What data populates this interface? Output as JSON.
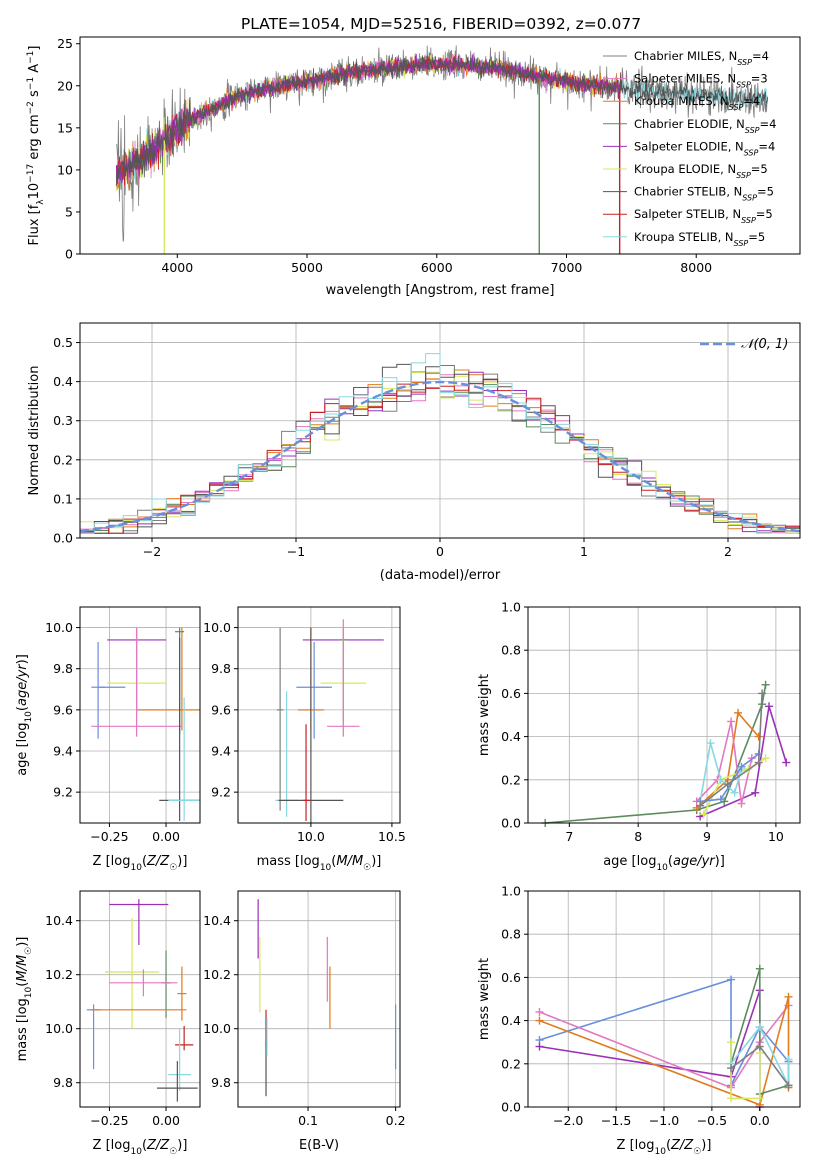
{
  "figure": {
    "title": "PLATE=1054, MJD=52516, FIBERID=0392, z=0.077"
  },
  "colors": {
    "Chabrier MILES": "#7f7f7f",
    "Salpeter MILES": "#e377c2",
    "Kroupa MILES": "#e07b20",
    "Chabrier ELODIE": "#5b8a5b",
    "Salpeter ELODIE": "#9b30b8",
    "Kroupa ELODIE": "#d8e860",
    "Chabrier STELIB": "#555555",
    "Salpeter STELIB": "#c82020",
    "Kroupa STELIB": "#88d8e0",
    "blue": "#6a8fdc"
  },
  "chart_data": [
    {
      "id": "spectrum",
      "type": "line",
      "xlabel": "wavelength [Angstrom, rest frame]",
      "ylabel": "Flux [f_λ 10^-17 erg cm^-2 s^-1 A^-1]",
      "xlim": [
        3250,
        8800
      ],
      "ylim": [
        0,
        25.8
      ],
      "xticks": [
        4000,
        5000,
        6000,
        7000,
        8000
      ],
      "yticks": [
        0,
        5,
        10,
        15,
        20,
        25
      ],
      "grid": false,
      "legend_position": "top-right",
      "series": [
        {
          "name": "Chabrier MILES",
          "nssp": "4",
          "color_key": "Chabrier MILES"
        },
        {
          "name": "Salpeter MILES",
          "nssp": "3",
          "color_key": "Salpeter MILES"
        },
        {
          "name": "Kroupa MILES",
          "nssp": "4",
          "color_key": "Kroupa MILES"
        },
        {
          "name": "Chabrier ELODIE",
          "nssp": "4",
          "color_key": "Chabrier ELODIE"
        },
        {
          "name": "Salpeter ELODIE",
          "nssp": "4",
          "color_key": "Salpeter ELODIE"
        },
        {
          "name": "Kroupa ELODIE",
          "nssp": "5",
          "color_key": "Kroupa ELODIE"
        },
        {
          "name": "Chabrier STELIB",
          "nssp": "5",
          "color_key": "Chabrier STELIB"
        },
        {
          "name": "Salpeter STELIB",
          "nssp": "5",
          "color_key": "Salpeter STELIB"
        },
        {
          "name": "Kroupa STELIB",
          "nssp": "5",
          "color_key": "Kroupa STELIB"
        }
      ],
      "continuum_x": [
        3530,
        3700,
        3900,
        4100,
        4300,
        4500,
        4800,
        5000,
        5300,
        5600,
        5900,
        6200,
        6500,
        6800,
        7000,
        7200,
        7400,
        7700,
        8000,
        8300,
        8550,
        8800
      ],
      "continuum_y": [
        9.5,
        11.0,
        13.5,
        16.0,
        17.5,
        19.0,
        20.0,
        20.5,
        21.5,
        22.0,
        22.5,
        22.5,
        22.0,
        21.0,
        20.5,
        20.0,
        19.8,
        19.2,
        19.0,
        18.5,
        18.5,
        19.0
      ],
      "dips": [
        {
          "x": 3900,
          "y": 0
        },
        {
          "x": 6790,
          "y": 0
        },
        {
          "x": 7410,
          "y": 0
        }
      ]
    },
    {
      "id": "residuals",
      "type": "step",
      "xlabel": "(data-model)/error",
      "ylabel": "Normed distribution",
      "xlim": [
        -2.5,
        2.5
      ],
      "ylim": [
        0,
        0.55
      ],
      "xticks": [
        -2,
        -1,
        0,
        1,
        2
      ],
      "xtick_labels": [
        "−2",
        "−1",
        "0",
        "1",
        "2"
      ],
      "yticks": [
        0.0,
        0.1,
        0.2,
        0.3,
        0.4,
        0.5
      ],
      "grid": true,
      "legend_position": "top-right",
      "reference_curve": {
        "name": "𝒩(0, 1)",
        "color_key": "blue",
        "mean": 0,
        "sigma": 1
      },
      "bin_width": 0.1,
      "bin_start": -2.5,
      "histogram_series": [
        "Chabrier MILES",
        "Salpeter MILES",
        "Kroupa MILES",
        "Chabrier ELODIE",
        "Salpeter ELODIE",
        "Kroupa ELODIE",
        "Chabrier STELIB",
        "Salpeter STELIB",
        "Kroupa STELIB"
      ]
    },
    {
      "id": "age-vs-Z",
      "type": "errorbar",
      "xlabel": "Z [log10(Z/Z☉)]",
      "ylabel": "age [log10(age/yr)]",
      "xlim": [
        -0.38,
        0.15
      ],
      "ylim": [
        9.05,
        10.1
      ],
      "xticks": [
        -0.25,
        0.0
      ],
      "xtick_labels": [
        "−0.25",
        "0.00"
      ],
      "yticks": [
        9.2,
        9.4,
        9.6,
        9.8,
        10.0
      ],
      "grid": true,
      "points": [
        {
          "series": "Kroupa MILES",
          "x": 0.07,
          "xerr": 0.2,
          "y": 9.6,
          "yerr": [
            0.1,
            0.4
          ]
        },
        {
          "series": "Salpeter ELODIE",
          "x": -0.13,
          "xerr": 0.13,
          "y": 9.94,
          "yerr": [
            0.35,
            0.05
          ]
        },
        {
          "series": "Chabrier ELODIE",
          "x": 0.06,
          "xerr": 0.02,
          "y": 9.98,
          "yerr": [
            0.5,
            0.02
          ]
        },
        {
          "series": "Kroupa ELODIE",
          "x": -0.13,
          "xerr": 0.13,
          "y": 9.73,
          "yerr": [
            0.26,
            0.27
          ]
        },
        {
          "series": "blue",
          "x": -0.3,
          "xerr": 0.03,
          "y": 9.71,
          "yerr": [
            0.25,
            0.22
          ]
        },
        {
          "series": "blue",
          "x": -0.24,
          "xerr": 0.06,
          "y": 9.71,
          "yerr": [
            0,
            0
          ]
        },
        {
          "series": "Salpeter MILES",
          "x": -0.13,
          "xerr": 0.2,
          "y": 9.52,
          "yerr": [
            0.05,
            0.48
          ]
        },
        {
          "series": "Chabrier STELIB",
          "x": 0.06,
          "xerr": 0.09,
          "y": 9.16,
          "yerr": [
            0.1,
            0.79
          ]
        },
        {
          "series": "Kroupa STELIB",
          "x": 0.08,
          "xerr": 0.07,
          "y": 9.16,
          "yerr": [
            0.1,
            0.5
          ]
        }
      ]
    },
    {
      "id": "age-vs-mass",
      "type": "errorbar",
      "xlabel": "mass [log10(M/M☉)]",
      "ylabel": "",
      "xlim": [
        9.55,
        10.55
      ],
      "ylim": [
        9.05,
        10.1
      ],
      "xticks": [
        10.0,
        10.5
      ],
      "yticks": [
        9.2,
        9.4,
        9.6,
        9.8,
        10.0
      ],
      "grid": true,
      "points": [
        {
          "series": "Salpeter ELODIE",
          "x": 10.2,
          "xerr": 0.25,
          "y": 9.94,
          "yerr": [
            0.4,
            0.05
          ]
        },
        {
          "series": "Kroupa MILES",
          "x": 10.0,
          "xerr": 0.08,
          "y": 9.6,
          "yerr": [
            0.1,
            0.4
          ]
        },
        {
          "series": "Chabrier ELODIE",
          "x": 10.2,
          "xerr": 0.02,
          "y": 9.94,
          "yerr": [
            0.1,
            0.05
          ]
        },
        {
          "series": "Kroupa ELODIE",
          "x": 10.2,
          "xerr": 0.14,
          "y": 9.73,
          "yerr": [
            0.26,
            0.27
          ]
        },
        {
          "series": "blue",
          "x": 10.02,
          "xerr": 0.11,
          "y": 9.71,
          "yerr": [
            0.25,
            0.22
          ]
        },
        {
          "series": "Salpeter MILES",
          "x": 10.2,
          "xerr": 0.1,
          "y": 9.52,
          "yerr": [
            0.05,
            0.52
          ]
        },
        {
          "series": "Chabrier MILES",
          "x": 9.81,
          "xerr": 0.02,
          "y": 9.6,
          "yerr": [
            0.49,
            0.4
          ]
        },
        {
          "series": "Kroupa STELIB",
          "x": 9.85,
          "xerr": 0.07,
          "y": 9.16,
          "yerr": [
            0.08,
            0.53
          ]
        },
        {
          "series": "Chabrier STELIB",
          "x": 10.0,
          "xerr": 0.2,
          "y": 9.16,
          "yerr": [
            0.15,
            0.84
          ]
        },
        {
          "series": "Salpeter STELIB",
          "x": 9.97,
          "xerr": 0.02,
          "y": 9.16,
          "yerr": [
            0.1,
            0.37
          ]
        }
      ]
    },
    {
      "id": "massweight-vs-age",
      "type": "line",
      "xlabel": "age [log10(age/yr)]",
      "ylabel": "mass weight",
      "xlim": [
        6.4,
        10.35
      ],
      "ylim": [
        0,
        1
      ],
      "xticks": [
        7,
        8,
        9,
        10
      ],
      "yticks": [
        0.0,
        0.2,
        0.4,
        0.6,
        0.8,
        1.0
      ],
      "grid": true,
      "series": [
        {
          "color_key": "Chabrier ELODIE",
          "x": [
            6.65,
            8.85,
            9.25,
            9.8,
            9.85
          ],
          "y": [
            0.0,
            0.06,
            0.1,
            0.55,
            0.64
          ]
        },
        {
          "color_key": "Salpeter ELODIE",
          "x": [
            8.9,
            9.7,
            9.9,
            10.15
          ],
          "y": [
            0.03,
            0.14,
            0.54,
            0.28
          ]
        },
        {
          "color_key": "Kroupa MILES",
          "x": [
            8.85,
            9.3,
            9.45,
            9.75
          ],
          "y": [
            0.07,
            0.2,
            0.51,
            0.4
          ]
        },
        {
          "color_key": "Salpeter MILES",
          "x": [
            8.85,
            9.15,
            9.35,
            9.5,
            9.65
          ],
          "y": [
            0.1,
            0.2,
            0.47,
            0.09,
            0.3
          ]
        },
        {
          "color_key": "Kroupa ELODIE",
          "x": [
            8.95,
            9.2,
            9.6,
            9.85
          ],
          "y": [
            0.04,
            0.2,
            0.25,
            0.3
          ]
        },
        {
          "color_key": "Kroupa STELIB",
          "x": [
            8.9,
            9.05,
            9.2,
            9.4,
            9.5
          ],
          "y": [
            0.1,
            0.37,
            0.2,
            0.14,
            0.25
          ]
        },
        {
          "color_key": "blue",
          "x": [
            8.9,
            9.2,
            9.5,
            9.75
          ],
          "y": [
            0.1,
            0.11,
            0.26,
            0.32
          ]
        },
        {
          "color_key": "Chabrier MILES",
          "x": [
            8.9,
            9.3,
            9.75,
            9.8
          ],
          "y": [
            0.08,
            0.18,
            0.28,
            0.6
          ]
        }
      ]
    },
    {
      "id": "mass-vs-Z",
      "type": "errorbar",
      "xlabel": "Z [log10(Z/Z☉)]",
      "ylabel": "mass [log10(M/M☉)]",
      "xlim": [
        -0.38,
        0.15
      ],
      "ylim": [
        9.71,
        10.51
      ],
      "xticks": [
        -0.25,
        0.0
      ],
      "xtick_labels": [
        "−0.25",
        "0.00"
      ],
      "yticks": [
        9.8,
        10.0,
        10.2,
        10.4
      ],
      "grid": true,
      "points": [
        {
          "series": "Salpeter ELODIE",
          "x": -0.12,
          "xerr": 0.13,
          "y": 10.46,
          "yerr": [
            0.15,
            0.02
          ]
        },
        {
          "series": "Kroupa ELODIE",
          "x": -0.15,
          "xerr": 0.12,
          "y": 10.21,
          "yerr": [
            0.21,
            0.2
          ]
        },
        {
          "series": "Chabrier ELODIE",
          "x": 0.0,
          "xerr": 0.02,
          "y": 10.17,
          "yerr": [
            0.13,
            0.12
          ]
        },
        {
          "series": "Salpeter MILES",
          "x": -0.1,
          "xerr": 0.15,
          "y": 10.17,
          "yerr": [
            0.05,
            0.05
          ]
        },
        {
          "series": "Kroupa MILES",
          "x": 0.07,
          "xerr": 0.02,
          "y": 10.13,
          "yerr": [
            0.1,
            0.1
          ]
        },
        {
          "series": "blue",
          "x": -0.32,
          "xerr": 0.03,
          "y": 10.07,
          "yerr": [
            0.22,
            0.02
          ]
        },
        {
          "series": "Kroupa MILES",
          "x": -0.12,
          "xerr": 0.21,
          "y": 10.07,
          "yerr": [
            0,
            0
          ]
        },
        {
          "series": "Salpeter STELIB",
          "x": 0.08,
          "xerr": 0.04,
          "y": 9.94,
          "yerr": [
            0.02,
            0.07
          ]
        },
        {
          "series": "Kroupa STELIB",
          "x": 0.06,
          "xerr": 0.05,
          "y": 9.83,
          "yerr": [
            0.06,
            0.17
          ]
        },
        {
          "series": "Chabrier STELIB",
          "x": 0.05,
          "xerr": 0.09,
          "y": 9.78,
          "yerr": [
            0.05,
            0.1
          ]
        }
      ]
    },
    {
      "id": "mass-vs-EBV",
      "type": "errorbar",
      "xlabel": "E(B-V)",
      "ylabel": "",
      "xlim": [
        0.02,
        0.205
      ],
      "ylim": [
        9.71,
        10.51
      ],
      "xticks": [
        0.1,
        0.2
      ],
      "yticks": [
        9.8,
        10.0,
        10.2,
        10.4
      ],
      "grid": true,
      "points": [
        {
          "series": "Salpeter ELODIE",
          "x": 0.043,
          "xerr": 0,
          "y": 10.4,
          "yerr": [
            0.14,
            0.08
          ]
        },
        {
          "series": "Kroupa ELODIE",
          "x": 0.045,
          "xerr": 0,
          "y": 10.2,
          "yerr": [
            0.14,
            0.14
          ]
        },
        {
          "series": "Salpeter STELIB",
          "x": 0.052,
          "xerr": 0,
          "y": 10.0,
          "yerr": [
            0.07,
            0.07
          ]
        },
        {
          "series": "Chabrier STELIB",
          "x": 0.052,
          "xerr": 0,
          "y": 9.85,
          "yerr": [
            0.1,
            0.1
          ]
        },
        {
          "series": "Kroupa STELIB",
          "x": 0.053,
          "xerr": 0,
          "y": 9.97,
          "yerr": [
            0.07,
            0.07
          ]
        },
        {
          "series": "Salpeter MILES",
          "x": 0.122,
          "xerr": 0,
          "y": 10.2,
          "yerr": [
            0.1,
            0.14
          ]
        },
        {
          "series": "Kroupa MILES",
          "x": 0.125,
          "xerr": 0,
          "y": 10.13,
          "yerr": [
            0.13,
            0.1
          ]
        },
        {
          "series": "blue",
          "x": 0.2,
          "xerr": 0,
          "y": 9.97,
          "yerr": [
            0.12,
            0.12
          ]
        }
      ]
    },
    {
      "id": "massweight-vs-Z",
      "type": "line",
      "xlabel": "Z [log10(Z/Z☉)]",
      "ylabel": "mass weight",
      "xlim": [
        -2.42,
        0.42
      ],
      "ylim": [
        0,
        1
      ],
      "xticks": [
        -2.0,
        -1.5,
        -1.0,
        -0.5,
        0.0
      ],
      "xtick_labels": [
        "−2.0",
        "−1.5",
        "−1.0",
        "−0.5",
        "0.0"
      ],
      "yticks": [
        0.0,
        0.2,
        0.4,
        0.6,
        0.8,
        1.0
      ],
      "grid": true,
      "series": [
        {
          "color_key": "blue",
          "x": [
            -2.3,
            -0.3,
            -0.3,
            0.0,
            0.3
          ],
          "y": [
            0.31,
            0.59,
            0.1,
            0.37,
            0.21
          ]
        },
        {
          "color_key": "Salpeter ELODIE",
          "x": [
            -2.3,
            -0.3,
            0.0,
            0.0
          ],
          "y": [
            0.28,
            0.14,
            0.54,
            0.0
          ]
        },
        {
          "color_key": "Salpeter MILES",
          "x": [
            -2.3,
            -0.3,
            0.0,
            0.3
          ],
          "y": [
            0.44,
            0.09,
            0.3,
            0.47
          ]
        },
        {
          "color_key": "Kroupa MILES",
          "x": [
            -2.3,
            0.0,
            0.3,
            0.3
          ],
          "y": [
            0.4,
            0.01,
            0.51,
            0.09
          ]
        },
        {
          "color_key": "Chabrier ELODIE",
          "x": [
            -0.3,
            0.0,
            0.0,
            0.3
          ],
          "y": [
            0.2,
            0.64,
            0.06,
            0.1
          ]
        },
        {
          "color_key": "Kroupa ELODIE",
          "x": [
            -0.3,
            -0.3,
            0.0,
            0.0
          ],
          "y": [
            0.3,
            0.04,
            0.04,
            0.25
          ]
        },
        {
          "color_key": "Kroupa STELIB",
          "x": [
            -0.3,
            0.0,
            0.3,
            0.3
          ],
          "y": [
            0.2,
            0.37,
            0.1,
            0.22
          ]
        },
        {
          "color_key": "Chabrier MILES",
          "x": [
            -0.3,
            0.0,
            0.3
          ],
          "y": [
            0.18,
            0.28,
            0.1
          ]
        }
      ]
    }
  ]
}
